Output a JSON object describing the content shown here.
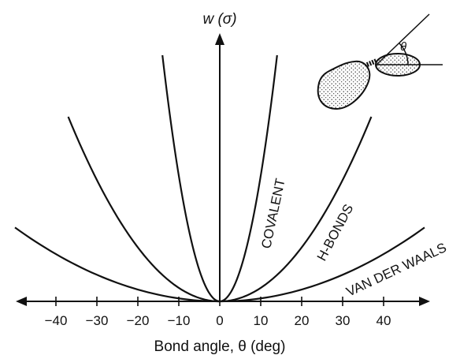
{
  "chart_data": {
    "type": "line",
    "title": "",
    "xlabel": "Bond angle, θ (deg)",
    "ylabel": "w (σ)",
    "x_ticks": [
      -40,
      -30,
      -20,
      -10,
      0,
      10,
      20,
      30,
      40
    ],
    "x_tick_labels": [
      "−40",
      "−30",
      "−20",
      "−10",
      "0",
      "10",
      "20",
      "30",
      "40"
    ],
    "xlim": [
      -50,
      50
    ],
    "ylim": [
      0,
      1
    ],
    "grid": false,
    "series": [
      {
        "name": "COVALENT",
        "x": [
          -14,
          -10,
          -5,
          0,
          5,
          10,
          14
        ],
        "values": [
          1.0,
          0.5,
          0.125,
          0,
          0.125,
          0.5,
          1.0
        ]
      },
      {
        "name": "H-BONDS",
        "x": [
          -37,
          -30,
          -20,
          -10,
          0,
          10,
          20,
          30,
          37
        ],
        "values": [
          0.75,
          0.49,
          0.22,
          0.055,
          0,
          0.055,
          0.22,
          0.49,
          0.75
        ]
      },
      {
        "name": "VAN DER WAALS",
        "x": [
          -50,
          -40,
          -30,
          -20,
          -10,
          0,
          10,
          20,
          30,
          40,
          50
        ],
        "values": [
          0.3,
          0.192,
          0.108,
          0.048,
          0.012,
          0,
          0.012,
          0.048,
          0.108,
          0.192,
          0.3
        ]
      }
    ],
    "inset": {
      "label": "θ"
    }
  }
}
